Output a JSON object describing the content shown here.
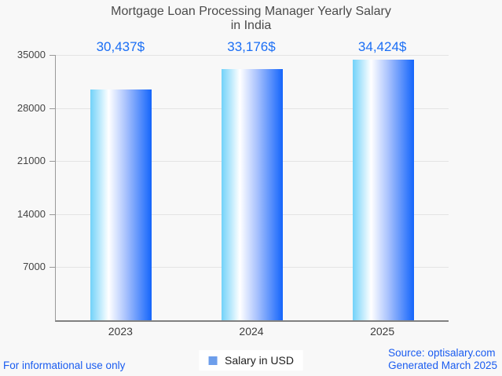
{
  "header": {
    "title_line1": "Mortgage Loan Processing Manager Yearly Salary",
    "title_line2": "in India"
  },
  "chart_data": {
    "type": "bar",
    "title": "Mortgage Loan Processing Manager Yearly Salary in India",
    "categories": [
      "2023",
      "2024",
      "2025"
    ],
    "values": [
      30437,
      33176,
      34424
    ],
    "value_labels": [
      "30,437$",
      "33,176$",
      "34,424$"
    ],
    "series_name": "Salary in USD",
    "xlabel": "",
    "ylabel": "",
    "ylim": [
      0,
      35000
    ],
    "yticks": [
      7000,
      14000,
      21000,
      28000,
      35000
    ],
    "grid": true,
    "legend_position": "bottom-center"
  },
  "legend": {
    "label": "Salary in USD"
  },
  "footer": {
    "left": "For informational use only",
    "source": "Source: optisalary.com",
    "generated": "Generated March 2025"
  },
  "colors": {
    "background": "#f8f8f8",
    "bar_gradient": [
      "#72d2f9",
      "#ffffff",
      "#a9c2fd",
      "#1465fb"
    ],
    "value_label": "#1a6ef5",
    "footer_text": "#1a5cf0",
    "legend_swatch": "#6d9eeb",
    "gridline": "#e4e4e4",
    "axis_line": "#999999",
    "baseline": "#808080",
    "title_text": "#4b4b4b",
    "tick_text": "#444444"
  }
}
